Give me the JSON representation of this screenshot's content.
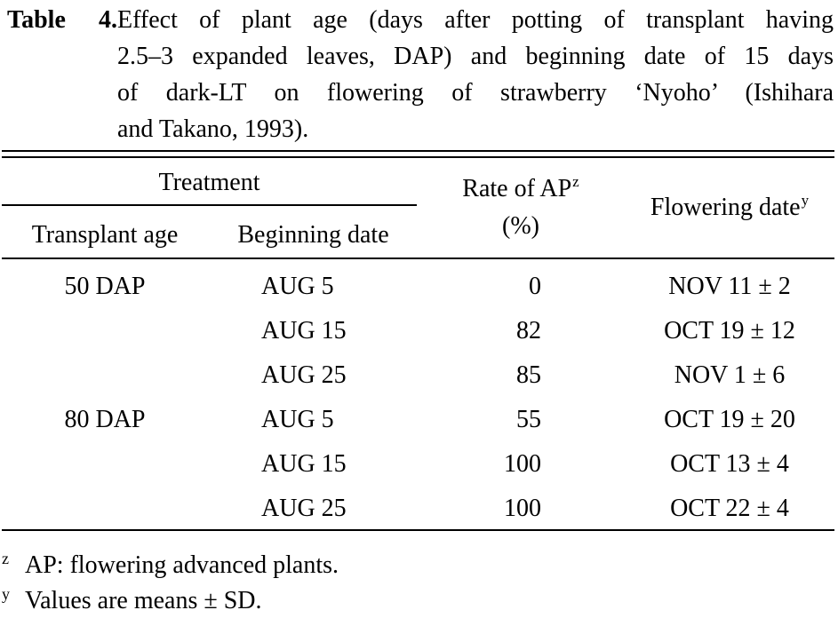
{
  "caption": {
    "label": "Table  4.",
    "lines": [
      "Effect of plant age (days after potting of transplant having",
      "2.5–3 expanded leaves, DAP) and beginning date of 15 days",
      "of dark-LT on flowering of strawberry ‘Nyoho’ (Ishihara",
      "and Takano, 1993)."
    ]
  },
  "headers": {
    "treatment": "Treatment",
    "transplant_age": "Transplant age",
    "beginning_date": "Beginning date",
    "rate_of_ap": "Rate of AP",
    "rate_of_ap_mark": "z",
    "rate_unit": "(%)",
    "flowering_date": "Flowering date",
    "flowering_date_mark": "y"
  },
  "rows": [
    {
      "transplant_age": "50 DAP",
      "beginning_date": "AUG 5",
      "rate": "0",
      "flowering": "NOV 11 ± 2"
    },
    {
      "transplant_age": "",
      "beginning_date": "AUG 15",
      "rate": "82",
      "flowering": "OCT 19 ± 12"
    },
    {
      "transplant_age": "",
      "beginning_date": "AUG 25",
      "rate": "85",
      "flowering": "NOV 1 ± 6"
    },
    {
      "transplant_age": "80 DAP",
      "beginning_date": "AUG 5",
      "rate": "55",
      "flowering": "OCT 19 ± 20"
    },
    {
      "transplant_age": "",
      "beginning_date": "AUG 15",
      "rate": "100",
      "flowering": "OCT 13 ± 4"
    },
    {
      "transplant_age": "",
      "beginning_date": "AUG 25",
      "rate": "100",
      "flowering": "OCT 22 ± 4"
    }
  ],
  "footnotes": [
    {
      "mark": "z",
      "text": "AP: flowering advanced plants."
    },
    {
      "mark": "y",
      "text": "Values are means ± SD."
    }
  ]
}
